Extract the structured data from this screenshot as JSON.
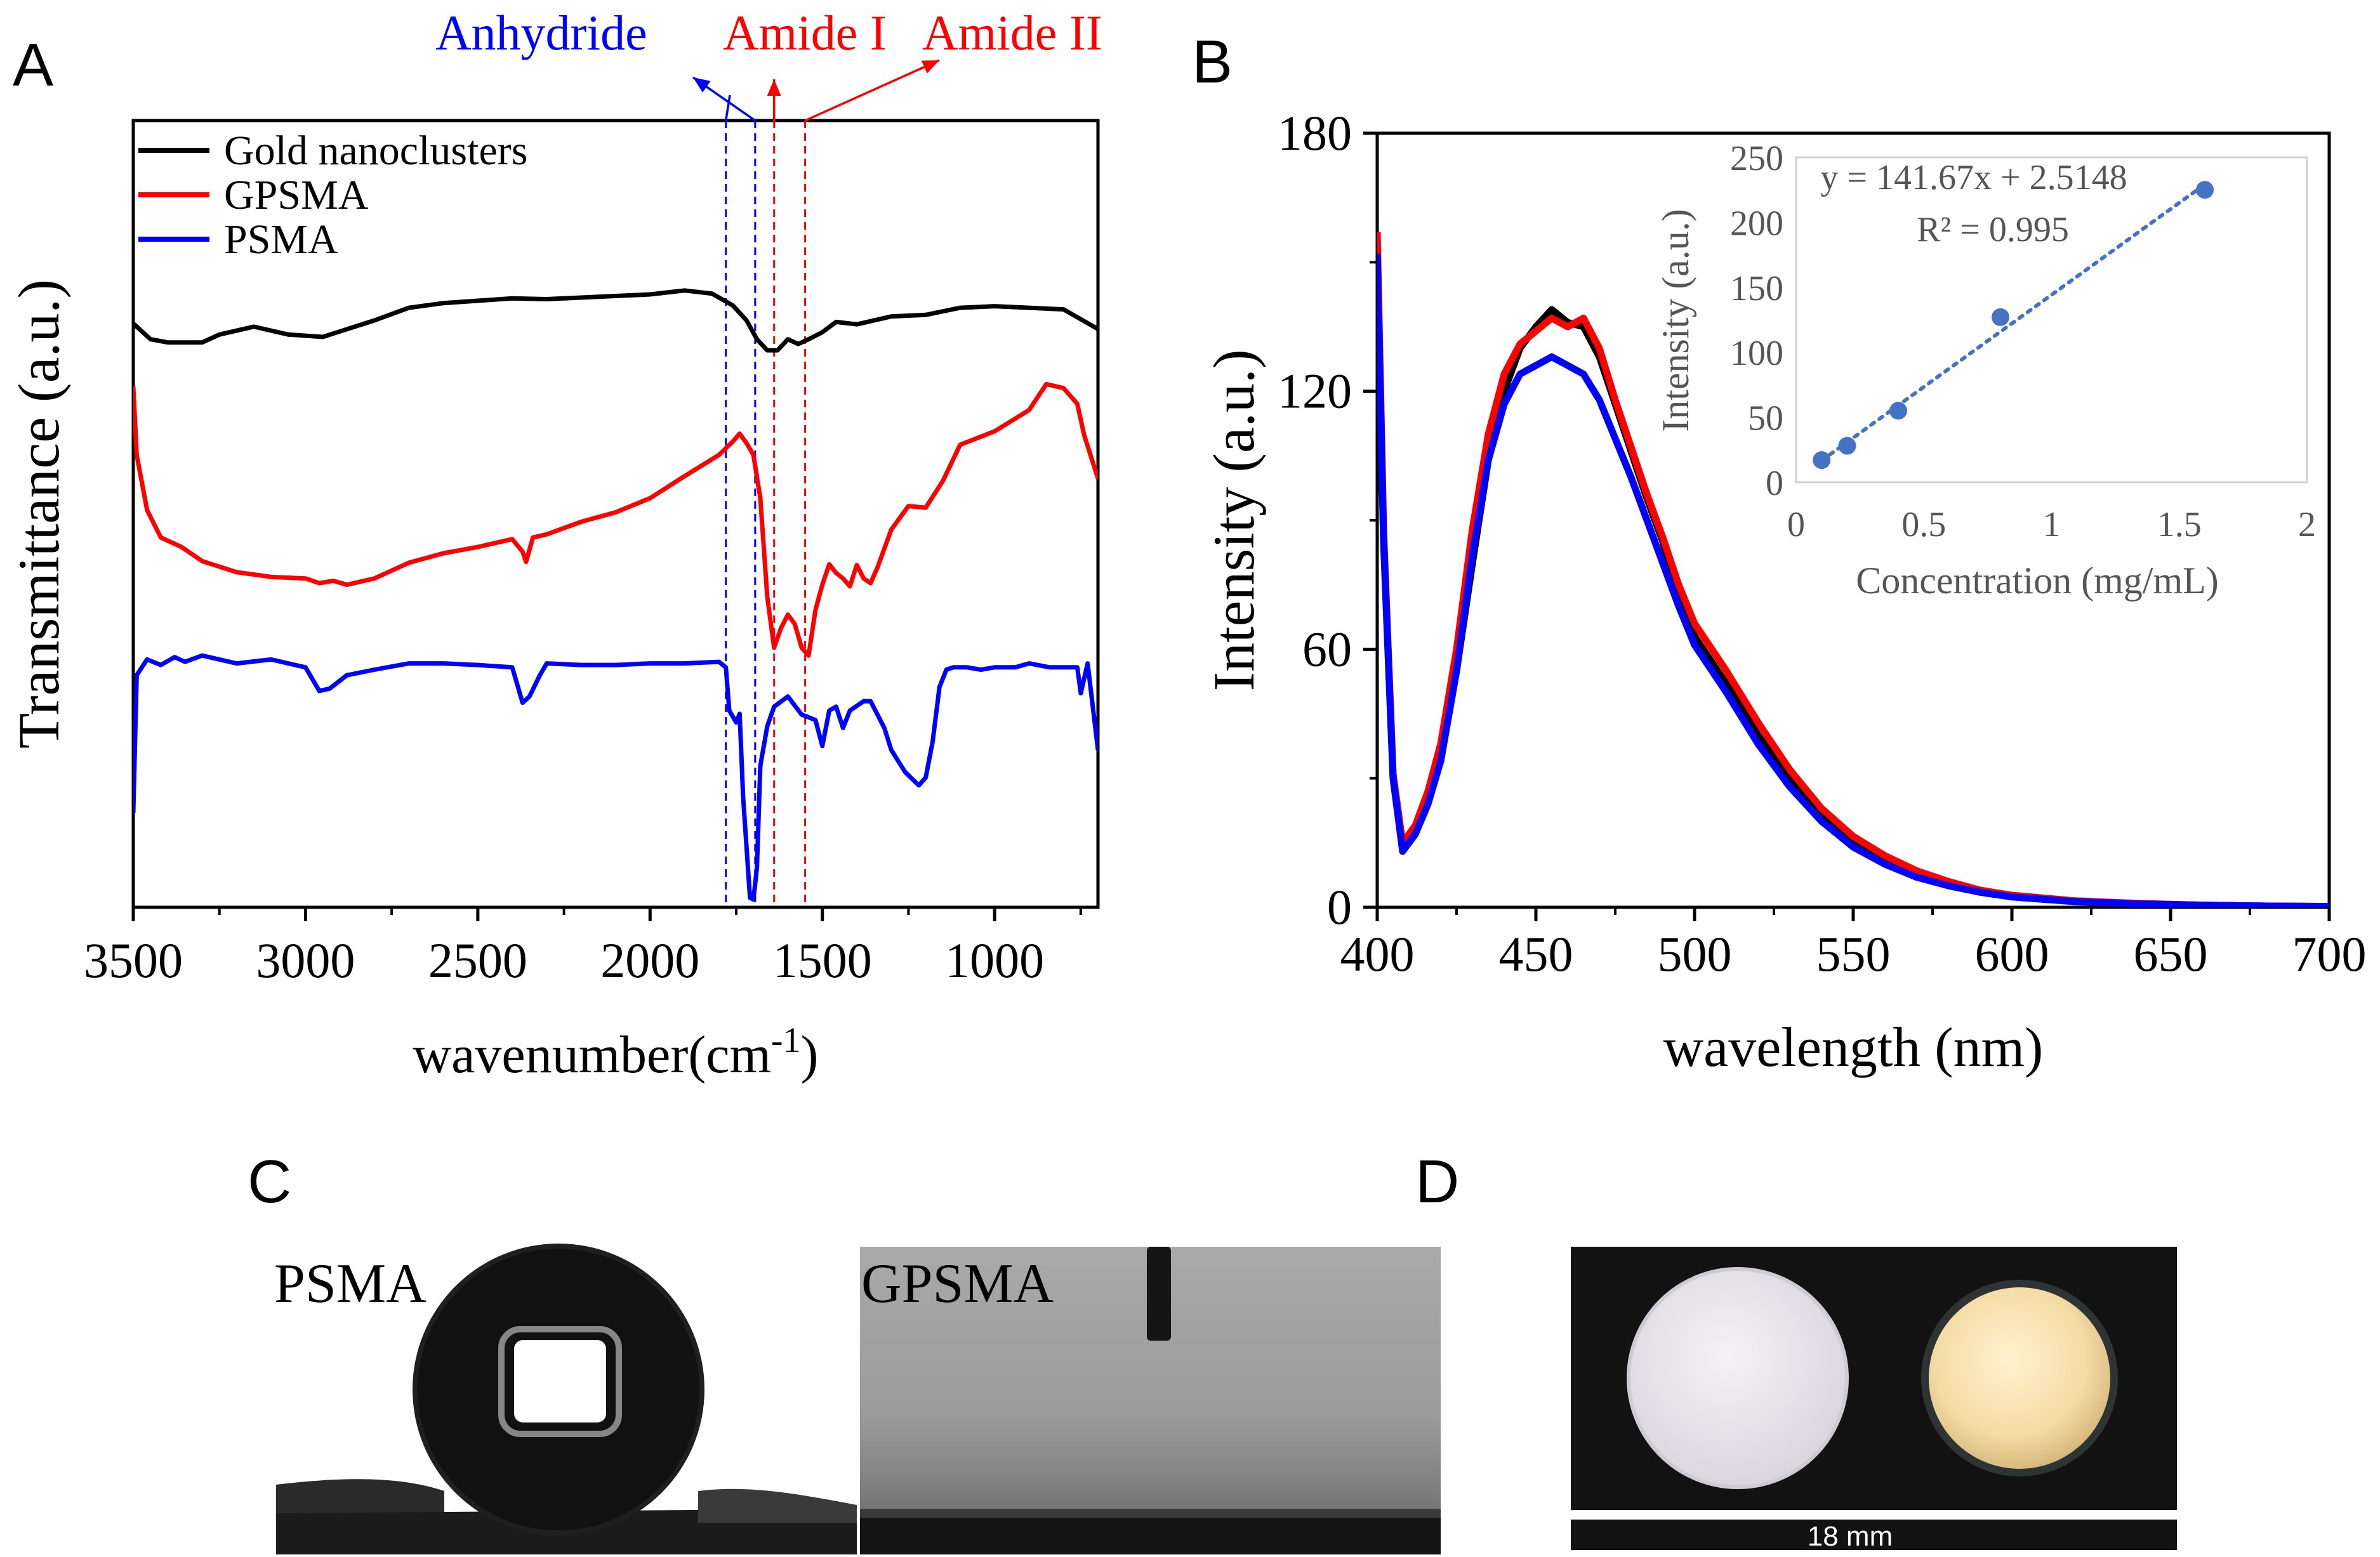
{
  "panels": {
    "a_label": "A",
    "b_label": "B",
    "c_label": "C",
    "d_label": "D"
  },
  "chart_data": [
    {
      "id": "A",
      "type": "line",
      "xlabel": "wavenumber(cm",
      "xlabel_sup": "-1",
      "xlabel_close": ")",
      "ylabel": "Transmittance (a.u.)",
      "xlim": [
        3500,
        700
      ],
      "ylim": [
        0,
        1
      ],
      "xticks": [
        3500,
        3000,
        2500,
        2000,
        1500,
        1000
      ],
      "legend_position": "top-left",
      "series": [
        {
          "name": "Gold nanoclusters",
          "color": "#000000",
          "x": [
            3500,
            3450,
            3400,
            3300,
            3250,
            3150,
            3050,
            2950,
            2900,
            2800,
            2700,
            2600,
            2500,
            2400,
            2300,
            2200,
            2100,
            2000,
            1900,
            1820,
            1760,
            1720,
            1690,
            1660,
            1630,
            1600,
            1570,
            1540,
            1500,
            1460,
            1400,
            1300,
            1200,
            1100,
            1000,
            900,
            800,
            700
          ],
          "y": [
            0.742,
            0.722,
            0.718,
            0.718,
            0.728,
            0.738,
            0.728,
            0.725,
            0.732,
            0.746,
            0.762,
            0.768,
            0.771,
            0.774,
            0.773,
            0.775,
            0.777,
            0.779,
            0.784,
            0.78,
            0.765,
            0.746,
            0.722,
            0.708,
            0.708,
            0.722,
            0.716,
            0.722,
            0.731,
            0.744,
            0.741,
            0.751,
            0.753,
            0.762,
            0.764,
            0.762,
            0.76,
            0.735
          ]
        },
        {
          "name": "GPSMA",
          "color": "#ff0000",
          "x": [
            3500,
            3490,
            3460,
            3420,
            3360,
            3300,
            3200,
            3100,
            3000,
            2960,
            2920,
            2880,
            2800,
            2700,
            2600,
            2500,
            2400,
            2370,
            2360,
            2340,
            2300,
            2200,
            2100,
            2000,
            1900,
            1800,
            1760,
            1740,
            1720,
            1700,
            1680,
            1660,
            1640,
            1620,
            1600,
            1580,
            1560,
            1540,
            1520,
            1500,
            1480,
            1460,
            1440,
            1420,
            1400,
            1380,
            1360,
            1340,
            1300,
            1250,
            1200,
            1150,
            1100,
            1000,
            900,
            850,
            800,
            760,
            740,
            700
          ],
          "y": [
            0.662,
            0.575,
            0.505,
            0.47,
            0.458,
            0.44,
            0.426,
            0.42,
            0.418,
            0.412,
            0.415,
            0.41,
            0.418,
            0.438,
            0.45,
            0.458,
            0.468,
            0.452,
            0.439,
            0.47,
            0.474,
            0.49,
            0.502,
            0.52,
            0.548,
            0.575,
            0.592,
            0.602,
            0.59,
            0.575,
            0.52,
            0.395,
            0.33,
            0.355,
            0.372,
            0.36,
            0.33,
            0.32,
            0.378,
            0.41,
            0.436,
            0.425,
            0.418,
            0.408,
            0.435,
            0.418,
            0.412,
            0.432,
            0.48,
            0.51,
            0.508,
            0.542,
            0.588,
            0.605,
            0.632,
            0.665,
            0.66,
            0.64,
            0.6,
            0.545
          ]
        },
        {
          "name": "PSMA",
          "color": "#0000ff",
          "x": [
            3500,
            3490,
            3460,
            3420,
            3380,
            3350,
            3300,
            3200,
            3100,
            3000,
            2960,
            2930,
            2880,
            2800,
            2700,
            2600,
            2500,
            2400,
            2370,
            2350,
            2320,
            2300,
            2200,
            2100,
            2000,
            1900,
            1800,
            1780,
            1770,
            1750,
            1740,
            1730,
            1710,
            1700,
            1690,
            1680,
            1660,
            1640,
            1600,
            1560,
            1520,
            1500,
            1480,
            1460,
            1440,
            1420,
            1380,
            1360,
            1320,
            1300,
            1260,
            1220,
            1200,
            1180,
            1160,
            1140,
            1120,
            1080,
            1040,
            1000,
            940,
            900,
            840,
            800,
            760,
            750,
            730,
            700
          ],
          "y": [
            0.12,
            0.295,
            0.315,
            0.308,
            0.318,
            0.312,
            0.32,
            0.31,
            0.315,
            0.305,
            0.275,
            0.278,
            0.295,
            0.302,
            0.31,
            0.31,
            0.308,
            0.305,
            0.26,
            0.268,
            0.295,
            0.31,
            0.308,
            0.308,
            0.31,
            0.31,
            0.312,
            0.305,
            0.25,
            0.235,
            0.246,
            0.14,
            0.012,
            0.01,
            0.05,
            0.18,
            0.23,
            0.255,
            0.268,
            0.245,
            0.238,
            0.205,
            0.25,
            0.255,
            0.228,
            0.25,
            0.262,
            0.262,
            0.228,
            0.2,
            0.172,
            0.155,
            0.165,
            0.21,
            0.28,
            0.302,
            0.305,
            0.305,
            0.302,
            0.305,
            0.305,
            0.31,
            0.305,
            0.305,
            0.305,
            0.272,
            0.31,
            0.2
          ]
        }
      ],
      "annotations": [
        {
          "text": "Anhydride",
          "color": "#0000ff",
          "x": [
            1780,
            1695
          ]
        },
        {
          "text": "Amide I",
          "color": "#ff0000",
          "x": [
            1640
          ]
        },
        {
          "text": "Amide II",
          "color": "#ff0000",
          "x": [
            1550
          ]
        }
      ]
    },
    {
      "id": "B",
      "type": "line",
      "xlabel": "wavelength (nm)",
      "ylabel": "Intensity (a.u.)",
      "xlim": [
        400,
        700
      ],
      "ylim": [
        0,
        180
      ],
      "xticks": [
        400,
        450,
        500,
        550,
        600,
        650,
        700
      ],
      "yticks": [
        0,
        60,
        120,
        180
      ],
      "series": [
        {
          "color": "#000000",
          "x": [
            400,
            402,
            405,
            408,
            412,
            416,
            420,
            425,
            430,
            435,
            440,
            445,
            450,
            455,
            460,
            465,
            470,
            475,
            480,
            485,
            490,
            495,
            500,
            510,
            520,
            530,
            540,
            550,
            560,
            570,
            580,
            590,
            600,
            620,
            640,
            660,
            680,
            700
          ],
          "y": [
            150,
            85,
            30,
            14,
            18,
            25,
            34,
            55,
            80,
            104,
            120,
            130,
            135,
            139,
            136,
            135,
            128,
            117,
            106,
            95,
            85,
            72,
            63,
            52,
            40,
            30,
            21,
            15,
            11,
            8,
            5.5,
            3.8,
            2.6,
            1.4,
            0.8,
            0.5,
            0.3,
            0.2
          ]
        },
        {
          "color": "#ff0000",
          "x": [
            400,
            402,
            405,
            408,
            412,
            416,
            420,
            425,
            430,
            435,
            440,
            445,
            450,
            455,
            460,
            465,
            470,
            475,
            480,
            485,
            490,
            495,
            500,
            510,
            520,
            530,
            540,
            550,
            560,
            570,
            580,
            590,
            600,
            620,
            640,
            660,
            680,
            700
          ],
          "y": [
            157,
            88,
            31,
            15,
            19,
            27,
            38,
            60,
            88,
            110,
            124,
            131,
            134,
            137,
            135,
            137,
            130,
            118,
            107,
            96,
            86,
            75,
            66,
            55,
            43,
            32,
            23,
            16.5,
            12,
            8.5,
            6,
            4,
            2.8,
            1.5,
            0.9,
            0.5,
            0.3,
            0.2
          ]
        },
        {
          "color": "#0000ff",
          "x": [
            400,
            402,
            405,
            408,
            412,
            416,
            420,
            425,
            430,
            435,
            440,
            445,
            450,
            455,
            460,
            465,
            470,
            475,
            480,
            485,
            490,
            495,
            500,
            510,
            520,
            530,
            540,
            550,
            560,
            570,
            580,
            590,
            600,
            620,
            640,
            660,
            680,
            700
          ],
          "y": [
            152,
            86,
            30,
            13,
            17,
            24,
            34,
            55,
            82,
            104,
            117,
            124,
            126,
            128,
            126,
            124,
            118,
            109,
            100,
            90,
            80,
            70,
            61,
            50,
            38,
            28,
            20,
            14,
            10,
            7,
            5,
            3.5,
            2.4,
            1.3,
            0.8,
            0.5,
            0.3,
            0.2
          ]
        }
      ]
    },
    {
      "id": "B-inset",
      "type": "scatter",
      "xlabel": "Concentration (mg/mL)",
      "ylabel": "Intensity (a.u.)",
      "xlim": [
        0,
        2
      ],
      "ylim": [
        0,
        250
      ],
      "xticks": [
        0,
        0.5,
        1,
        1.5,
        2
      ],
      "xtick_labels": [
        "0",
        "0.5",
        "1",
        "1.5",
        "2"
      ],
      "yticks": [
        0,
        50,
        100,
        150,
        200,
        250
      ],
      "points": {
        "x": [
          0.1,
          0.2,
          0.4,
          0.8,
          1.6
        ],
        "y": [
          17,
          28,
          55,
          127,
          225
        ]
      },
      "color": "#4472c4",
      "fit": {
        "slope": 141.67,
        "intercept": 2.5148,
        "x_range": [
          0.1,
          1.6
        ]
      },
      "equation": "y = 141.67x + 2.5148",
      "r2": "R² = 0.995"
    }
  ],
  "panel_c": {
    "left_label": "PSMA",
    "right_label": "GPSMA"
  },
  "panel_d": {
    "scale_label": "18 mm"
  }
}
